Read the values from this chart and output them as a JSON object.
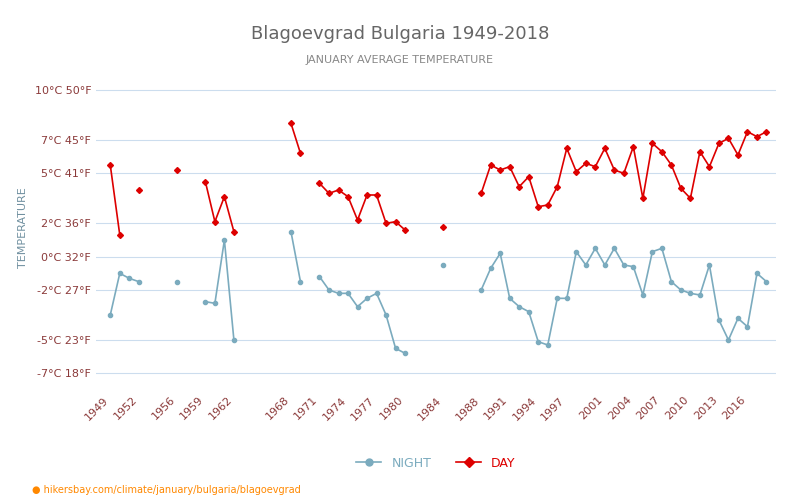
{
  "title": "Blagoevgrad Bulgaria 1949-2018",
  "subtitle": "JANUARY AVERAGE TEMPERATURE",
  "ylabel": "TEMPERATURE",
  "url_text": "hikersbay.com/climate/january/bulgaria/blagoevgrad",
  "legend_night": "NIGHT",
  "legend_day": "DAY",
  "night_color": "#7babbe",
  "day_color": "#dd0000",
  "background_color": "#ffffff",
  "grid_color": "#ccddee",
  "axis_color": "#8b3a3a",
  "yticks_celsius": [
    -7,
    -5,
    -2,
    0,
    2,
    5,
    7,
    10
  ],
  "yticks_fahrenheit": [
    18,
    23,
    27,
    32,
    36,
    41,
    45,
    50
  ],
  "x_labels": [
    "1949",
    "1952",
    "1956",
    "1959",
    "1962",
    "1968",
    "1971",
    "1974",
    "1977",
    "1980",
    "1984",
    "1988",
    "1991",
    "1994",
    "1997",
    "2001",
    "2004",
    "2007",
    "2010",
    "2013",
    "2016"
  ],
  "day_temps": [
    5.5,
    1.3,
    null,
    4.0,
    null,
    null,
    null,
    5.2,
    null,
    null,
    4.5,
    2.1,
    3.6,
    1.5,
    null,
    null,
    null,
    null,
    null,
    8.0,
    6.2,
    null,
    4.4,
    3.8,
    4.0,
    3.6,
    2.2,
    3.7,
    3.7,
    2.0,
    2.1,
    1.6,
    null,
    null,
    null,
    1.8,
    null,
    null,
    null,
    3.8,
    5.5,
    5.2,
    5.4,
    4.2,
    4.8,
    3.0,
    3.1,
    4.2,
    6.5,
    5.1,
    5.6,
    5.4,
    6.5,
    5.2,
    5.0,
    6.6,
    3.5,
    6.8,
    6.3,
    5.5,
    4.1,
    3.5,
    6.3,
    5.4,
    6.8,
    7.1,
    6.1,
    7.5,
    7.2,
    7.5
  ],
  "night_temps": [
    -3.5,
    -1.0,
    -1.3,
    -1.5,
    null,
    null,
    null,
    -1.5,
    null,
    null,
    -2.7,
    -2.8,
    1.0,
    -5.0,
    null,
    null,
    null,
    null,
    null,
    1.5,
    -1.5,
    null,
    -1.2,
    -2.0,
    -2.2,
    -2.2,
    -3.0,
    -2.5,
    -2.2,
    -3.5,
    -5.5,
    -5.8,
    null,
    null,
    null,
    -0.5,
    null,
    null,
    null,
    -2.0,
    -0.7,
    0.2,
    -2.5,
    -3.0,
    -3.3,
    -5.1,
    -5.3,
    -2.5,
    -2.5,
    0.3,
    -0.5,
    0.5,
    -0.5,
    0.5,
    -0.5,
    -0.6,
    -2.3,
    0.3,
    0.5,
    -1.5,
    -2.0,
    -2.2,
    -2.3,
    -0.5,
    -3.8,
    -5.0,
    -3.7,
    -4.2,
    -1.0,
    -1.5
  ]
}
